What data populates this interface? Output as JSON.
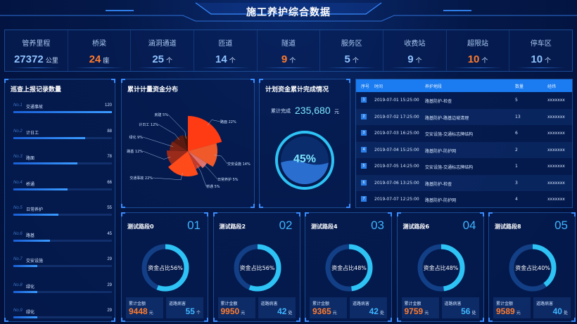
{
  "title": "施工养护综合数据",
  "stats": [
    {
      "label": "管养里程",
      "value": "27372",
      "unit": "公里",
      "color": "#8fc3ff"
    },
    {
      "label": "桥梁",
      "value": "24",
      "unit": "座",
      "color": "#ff7b2e"
    },
    {
      "label": "涵洞通道",
      "value": "25",
      "unit": "个",
      "color": "#8fc3ff"
    },
    {
      "label": "匝道",
      "value": "14",
      "unit": "个",
      "color": "#8fc3ff"
    },
    {
      "label": "隧道",
      "value": "9",
      "unit": "个",
      "color": "#ff7b2e"
    },
    {
      "label": "服务区",
      "value": "5",
      "unit": "个",
      "color": "#8fc3ff"
    },
    {
      "label": "收费站",
      "value": "9",
      "unit": "个",
      "color": "#8fc3ff"
    },
    {
      "label": "超限站",
      "value": "10",
      "unit": "个",
      "color": "#ff7b2e"
    },
    {
      "label": "停车区",
      "value": "10",
      "unit": "个",
      "color": "#8fc3ff"
    }
  ],
  "records": {
    "title": "巡查上报记录数量",
    "items": [
      {
        "no": "No.1",
        "name": "交通事故",
        "count": "120",
        "fraction": 1.0
      },
      {
        "no": "No.2",
        "name": "计日工",
        "count": "88",
        "fraction": 0.73
      },
      {
        "no": "No.3",
        "name": "路面",
        "count": "78",
        "fraction": 0.65
      },
      {
        "no": "No.4",
        "name": "桥通",
        "count": "66",
        "fraction": 0.55
      },
      {
        "no": "No.5",
        "name": "日常养护",
        "count": "55",
        "fraction": 0.46
      },
      {
        "no": "No.6",
        "name": "路基",
        "count": "45",
        "fraction": 0.37
      },
      {
        "no": "No.7",
        "name": "交安设施",
        "count": "29",
        "fraction": 0.24
      },
      {
        "no": "No.8",
        "name": "绿化",
        "count": "29",
        "fraction": 0.24
      },
      {
        "no": "No.9",
        "name": "绿化",
        "count": "29",
        "fraction": 0.24
      }
    ]
  },
  "funds": {
    "title": "累计计量资金分布",
    "chart_data": {
      "type": "pie",
      "categories": [
        "路面",
        "交安设施",
        "日常养护",
        "桥通",
        "交通事故",
        "路基",
        "绿化",
        "计日工",
        "房建"
      ],
      "values": [
        22,
        14,
        5,
        5,
        22,
        12,
        9,
        12,
        5
      ],
      "labels": [
        "路面 22%",
        "交安设施 14%",
        "日常养护 5%",
        "桥通 5%",
        "交通事故 22%",
        "路基 12%",
        "绿化 9%",
        "计日工 12%",
        "房建 5%"
      ]
    }
  },
  "plan": {
    "title": "计划资金累计完成情况",
    "label": "累计完成",
    "value": "235,680",
    "unit": "元",
    "percent": "45%",
    "fraction": 0.45
  },
  "table": {
    "headers": [
      "序号",
      "时间",
      "养护地段",
      "数量",
      "经纬"
    ],
    "rows": [
      {
        "idx": "1",
        "time": "2019-07-01 15:25:00",
        "place": "路基防护-检查",
        "qty": "5",
        "coord": "xxxxxxx"
      },
      {
        "idx": "2",
        "time": "2019-07-02 17:25:00",
        "place": "路基防护-路基边坡清理",
        "qty": "13",
        "coord": "xxxxxxx"
      },
      {
        "idx": "3",
        "time": "2019-07-03 16:25:00",
        "place": "交安设施-交通标志牌结构",
        "qty": "6",
        "coord": "xxxxxxx"
      },
      {
        "idx": "4",
        "time": "2019-07-04 15:25:00",
        "place": "路基防护-防护网",
        "qty": "2",
        "coord": "xxxxxxx"
      },
      {
        "idx": "5",
        "time": "2019-07-05 14:25:00",
        "place": "交安设施-交通标志牌结构",
        "qty": "1",
        "coord": "xxxxxxx"
      },
      {
        "idx": "6",
        "time": "2019-07-06 13:25:00",
        "place": "路基防护-检查",
        "qty": "3",
        "coord": "xxxxxxx"
      },
      {
        "idx": "7",
        "time": "2019-07-07 12:25:00",
        "place": "路基防护-防护网",
        "qty": "4",
        "coord": "xxxxxxx"
      }
    ]
  },
  "segments": [
    {
      "title": "测试路段0",
      "num": "01",
      "ratio_label": "资金占比56%",
      "fraction": 0.56,
      "amount_label": "累计金额",
      "amount": "9448",
      "amount_unit": "元",
      "disease_label": "道路病害",
      "disease": "55",
      "disease_unit": "个"
    },
    {
      "title": "测试路段2",
      "num": "02",
      "ratio_label": "资金占比56%",
      "fraction": 0.56,
      "amount_label": "累计金额",
      "amount": "9950",
      "amount_unit": "元",
      "disease_label": "道路病害",
      "disease": "42",
      "disease_unit": "处"
    },
    {
      "title": "测试路段4",
      "num": "03",
      "ratio_label": "资金占比48%",
      "fraction": 0.48,
      "amount_label": "累计金额",
      "amount": "9365",
      "amount_unit": "元",
      "disease_label": "道路病害",
      "disease": "42",
      "disease_unit": "处"
    },
    {
      "title": "测试路段6",
      "num": "04",
      "ratio_label": "资金占比48%",
      "fraction": 0.48,
      "amount_label": "累计金额",
      "amount": "9759",
      "amount_unit": "元",
      "disease_label": "道路病害",
      "disease": "56",
      "disease_unit": "处"
    },
    {
      "title": "测试路段8",
      "num": "05",
      "ratio_label": "资金占比40%",
      "fraction": 0.4,
      "amount_label": "累计金额",
      "amount": "9589",
      "amount_unit": "元",
      "disease_label": "道路病害",
      "disease": "40",
      "disease_unit": "处"
    }
  ]
}
